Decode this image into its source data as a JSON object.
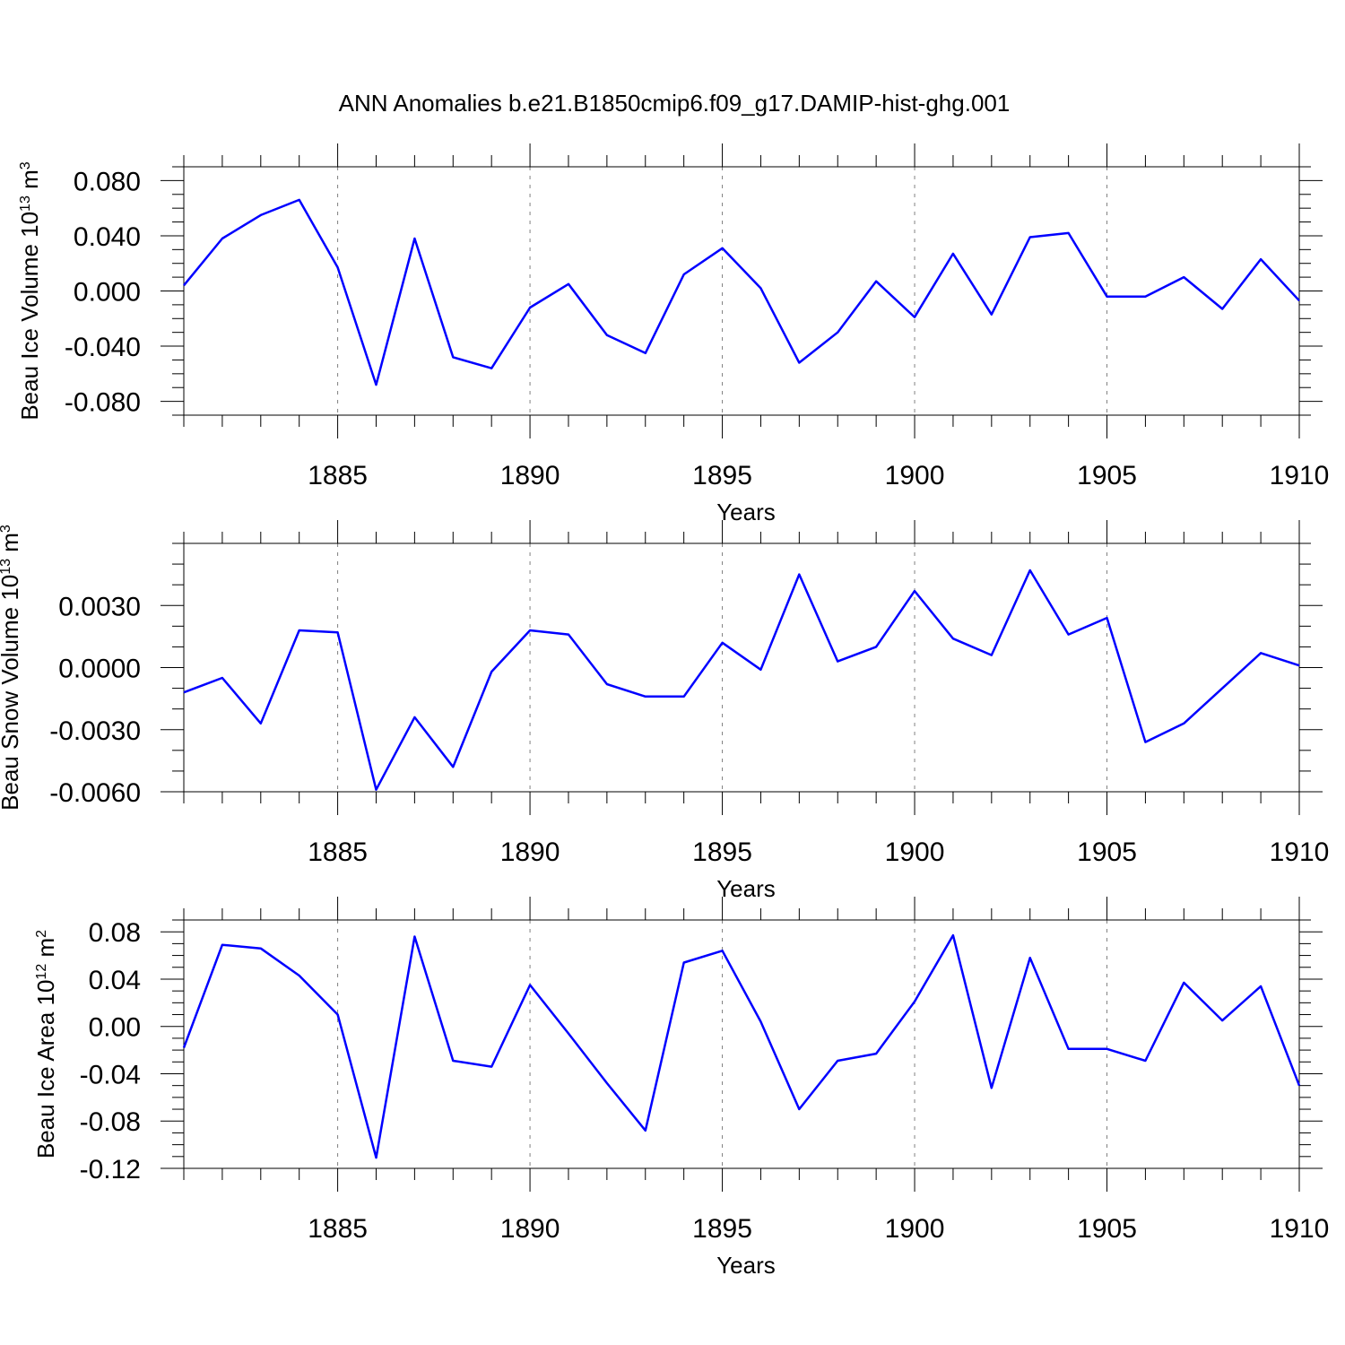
{
  "figure_title": "ANN Anomalies b.e21.B1850cmip6.f09_g17.DAMIP-hist-ghg.001",
  "colors": {
    "line": "#0000ff",
    "axis": "#000000",
    "grid": "#808080"
  },
  "chart_data": [
    {
      "type": "line",
      "ylabel": "Beau Ice Volume",
      "ylabel_unit_base": "10",
      "ylabel_unit_exp": "13",
      "ylabel_unit_symbol": "m",
      "ylabel_unit_sym_exp": "3",
      "xlabel": "Years",
      "xlim": [
        1881,
        1910
      ],
      "ylim": [
        -0.09,
        0.09
      ],
      "x_ticks": [
        1885,
        1890,
        1895,
        1900,
        1905,
        1910
      ],
      "x_tick_labels": [
        "1885",
        "1890",
        "1895",
        "1900",
        "1905",
        "1910"
      ],
      "y_ticks": [
        0.08,
        0.04,
        0.0,
        -0.04,
        -0.08
      ],
      "y_tick_labels": [
        "0.080",
        "0.040",
        "0.000",
        "-0.040",
        "-0.080"
      ],
      "y_minor_step": 0.01,
      "grid_x": [
        1885,
        1890,
        1895,
        1900,
        1905
      ],
      "series": [
        {
          "name": "Beau Ice Volume",
          "x": [
            1881,
            1882,
            1883,
            1884,
            1885,
            1886,
            1887,
            1888,
            1889,
            1890,
            1891,
            1892,
            1893,
            1894,
            1895,
            1896,
            1897,
            1898,
            1899,
            1900,
            1901,
            1902,
            1903,
            1904,
            1905,
            1906,
            1907,
            1908,
            1909,
            1910
          ],
          "values": [
            0.004,
            0.038,
            0.055,
            0.066,
            0.017,
            -0.068,
            0.038,
            -0.048,
            -0.056,
            -0.012,
            0.005,
            -0.032,
            -0.045,
            0.012,
            0.031,
            0.002,
            -0.052,
            -0.03,
            0.007,
            -0.019,
            0.027,
            -0.017,
            0.039,
            0.042,
            -0.004,
            -0.004,
            0.01,
            -0.013,
            0.023,
            -0.007
          ]
        }
      ]
    },
    {
      "type": "line",
      "ylabel": "Beau Snow Volume",
      "ylabel_unit_base": "10",
      "ylabel_unit_exp": "13",
      "ylabel_unit_symbol": "m",
      "ylabel_unit_sym_exp": "3",
      "xlabel": "Years",
      "xlim": [
        1881,
        1910
      ],
      "ylim": [
        -0.006,
        0.006
      ],
      "x_ticks": [
        1885,
        1890,
        1895,
        1900,
        1905,
        1910
      ],
      "x_tick_labels": [
        "1885",
        "1890",
        "1895",
        "1900",
        "1905",
        "1910"
      ],
      "y_ticks": [
        0.003,
        0.0,
        -0.003,
        -0.006
      ],
      "y_tick_labels": [
        "0.0030",
        "0.0000",
        "-0.0030",
        "-0.0060"
      ],
      "y_minor_step": 0.001,
      "grid_x": [
        1885,
        1890,
        1895,
        1900,
        1905
      ],
      "series": [
        {
          "name": "Beau Snow Volume",
          "x": [
            1881,
            1882,
            1883,
            1884,
            1885,
            1886,
            1887,
            1888,
            1889,
            1890,
            1891,
            1892,
            1893,
            1894,
            1895,
            1896,
            1897,
            1898,
            1899,
            1900,
            1901,
            1902,
            1903,
            1904,
            1905,
            1906,
            1907,
            1908,
            1909,
            1910
          ],
          "values": [
            -0.0012,
            -0.0005,
            -0.0027,
            0.0018,
            0.0017,
            -0.0059,
            -0.0024,
            -0.0048,
            -0.0002,
            0.0018,
            0.0016,
            -0.0008,
            -0.0014,
            -0.0014,
            0.0012,
            -0.0001,
            0.0045,
            0.0003,
            0.001,
            0.0037,
            0.0014,
            0.0006,
            0.0047,
            0.0016,
            0.0024,
            -0.0036,
            -0.0027,
            -0.001,
            0.0007,
            0.0001
          ]
        }
      ]
    },
    {
      "type": "line",
      "ylabel": "Beau Ice Area",
      "ylabel_unit_base": "10",
      "ylabel_unit_exp": "12",
      "ylabel_unit_symbol": "m",
      "ylabel_unit_sym_exp": "2",
      "xlabel": "Years",
      "xlim": [
        1881,
        1910
      ],
      "ylim": [
        -0.12,
        0.09
      ],
      "x_ticks": [
        1885,
        1890,
        1895,
        1900,
        1905,
        1910
      ],
      "x_tick_labels": [
        "1885",
        "1890",
        "1895",
        "1900",
        "1905",
        "1910"
      ],
      "y_ticks": [
        0.08,
        0.04,
        0.0,
        -0.04,
        -0.08,
        -0.12
      ],
      "y_tick_labels": [
        "0.08",
        "0.04",
        "0.00",
        "-0.04",
        "-0.08",
        "-0.12"
      ],
      "y_minor_step": 0.01,
      "grid_x": [
        1885,
        1890,
        1895,
        1900,
        1905
      ],
      "series": [
        {
          "name": "Beau Ice Area",
          "x": [
            1881,
            1882,
            1883,
            1884,
            1885,
            1886,
            1887,
            1888,
            1889,
            1890,
            1891,
            1892,
            1893,
            1894,
            1895,
            1896,
            1897,
            1898,
            1899,
            1900,
            1901,
            1902,
            1903,
            1904,
            1905,
            1906,
            1907,
            1908,
            1909,
            1910
          ],
          "values": [
            -0.018,
            0.069,
            0.066,
            0.043,
            0.01,
            -0.111,
            0.076,
            -0.029,
            -0.034,
            0.035,
            -0.006,
            -0.048,
            -0.088,
            0.054,
            0.064,
            0.004,
            -0.07,
            -0.029,
            -0.023,
            0.021,
            0.077,
            -0.052,
            0.058,
            -0.019,
            -0.019,
            -0.029,
            0.037,
            0.005,
            0.034,
            -0.05
          ]
        }
      ]
    }
  ]
}
